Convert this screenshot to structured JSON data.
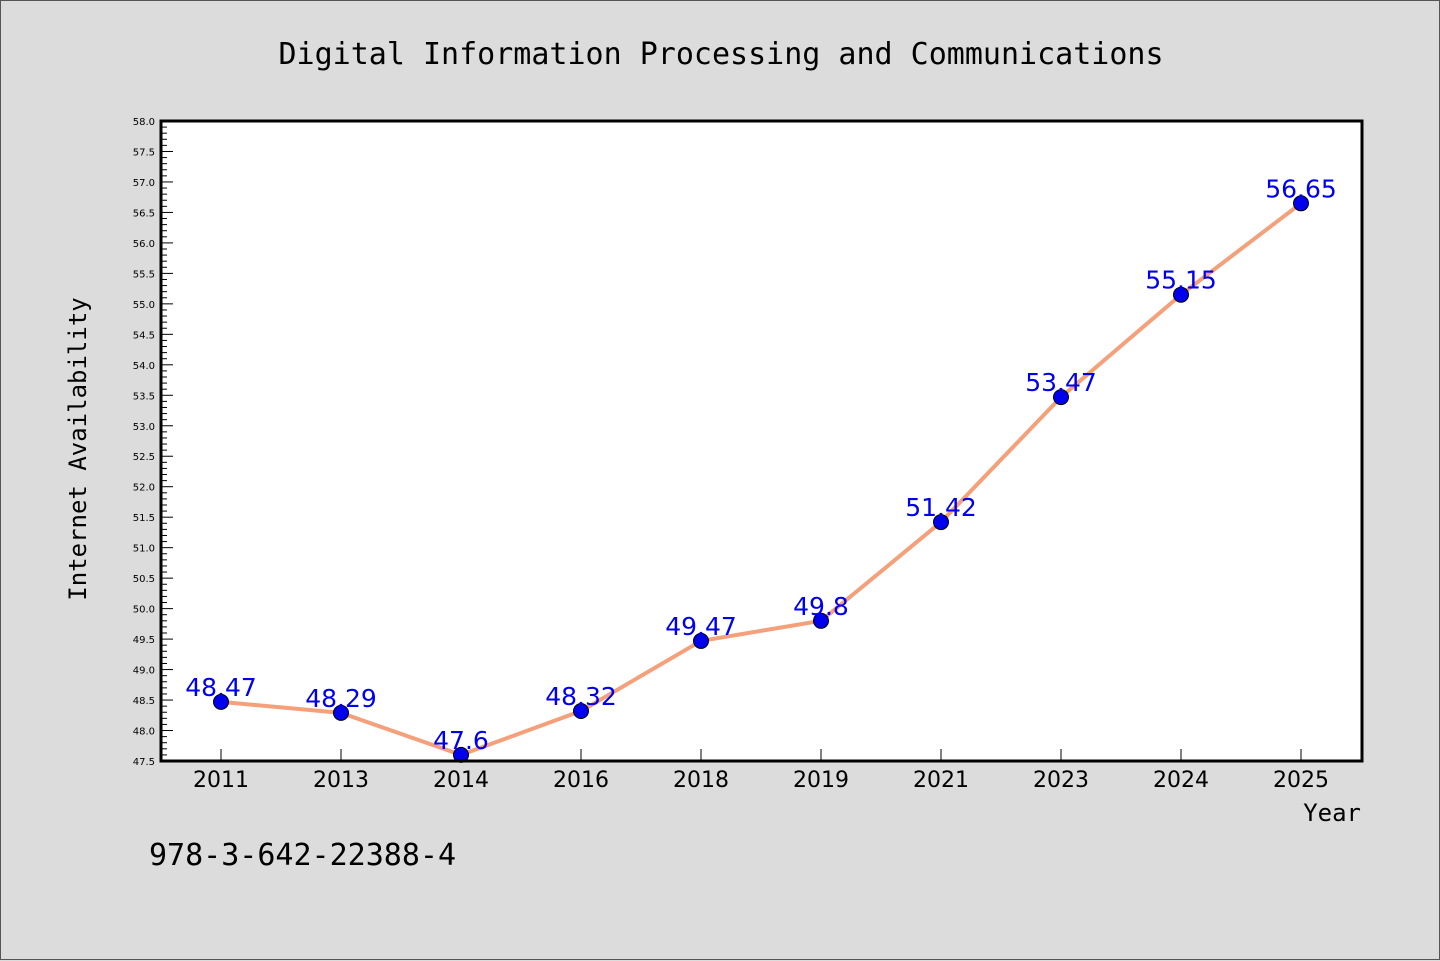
{
  "chart_data": {
    "type": "line",
    "title": "Digital Information Processing and Communications",
    "xlabel": "Year",
    "ylabel": "Internet Availability",
    "categories": [
      "2011",
      "2013",
      "2014",
      "2016",
      "2018",
      "2019",
      "2021",
      "2023",
      "2024",
      "2025"
    ],
    "series": [
      {
        "values": [
          48.47,
          48.29,
          47.6,
          48.32,
          49.47,
          49.8,
          51.42,
          53.47,
          55.15,
          56.65
        ],
        "labels": [
          "48.47",
          "48.29",
          "47.6",
          "48.32",
          "49.47",
          "49.8",
          "51.42",
          "53.47",
          "55.15",
          "56.65"
        ],
        "line_color": "#f4a07a",
        "marker_color": "#0000ee"
      }
    ],
    "ylim": [
      47.5,
      58.0
    ],
    "yticks": [
      "47.5",
      "48.0",
      "48.5",
      "49.0",
      "49.5",
      "50.0",
      "50.5",
      "51.0",
      "51.5",
      "52.0",
      "52.5",
      "53.0",
      "53.5",
      "54.0",
      "54.5",
      "55.0",
      "55.5",
      "56.0",
      "56.5",
      "57.0",
      "57.5",
      "58.0"
    ],
    "grid": false,
    "legend": "none"
  },
  "footer": {
    "isbn": "978-3-642-22388-4"
  },
  "colors": {
    "background": "#dcdcdc",
    "plot_background": "#ffffff",
    "label_color": "#0000ee"
  }
}
